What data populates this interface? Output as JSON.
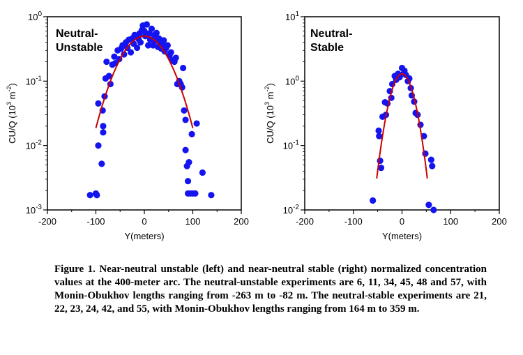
{
  "chart_data": [
    {
      "type": "scatter",
      "panel_label_lines": [
        "Neutral-",
        "Unstable"
      ],
      "xlabel": "Y(meters)",
      "ylabel_main": "CU/Q (10",
      "ylabel_sup": "3",
      "ylabel_unit": " m",
      "ylabel_unit_sup": "-2",
      "ylabel_close": ")",
      "xlim": [
        -200,
        200
      ],
      "ylim": [
        0.001,
        1
      ],
      "yscale": "log",
      "xticks": [
        "-200",
        "-100",
        "0",
        "100",
        "200"
      ],
      "yticks": [
        {
          "value": 1,
          "base": "10",
          "exp": "0"
        },
        {
          "value": 0.1,
          "base": "10",
          "exp": "-1"
        },
        {
          "value": 0.01,
          "base": "10",
          "exp": "-2"
        },
        {
          "value": 0.001,
          "base": "10",
          "exp": "-3"
        }
      ],
      "point_color": "#1414f0",
      "fit_color": "#cc0000",
      "points": [
        [
          -112,
          0.0017
        ],
        [
          -100,
          0.0018
        ],
        [
          -98,
          0.0017
        ],
        [
          -95,
          0.01
        ],
        [
          -95,
          0.045
        ],
        [
          -88,
          0.0052
        ],
        [
          -86,
          0.035
        ],
        [
          -85,
          0.02
        ],
        [
          -85,
          0.016
        ],
        [
          -82,
          0.058
        ],
        [
          -80,
          0.11
        ],
        [
          -78,
          0.2
        ],
        [
          -73,
          0.12
        ],
        [
          -70,
          0.09
        ],
        [
          -66,
          0.18
        ],
        [
          -62,
          0.24
        ],
        [
          -60,
          0.19
        ],
        [
          -55,
          0.3
        ],
        [
          -52,
          0.22
        ],
        [
          -48,
          0.32
        ],
        [
          -45,
          0.36
        ],
        [
          -42,
          0.26
        ],
        [
          -38,
          0.4
        ],
        [
          -35,
          0.33
        ],
        [
          -32,
          0.44
        ],
        [
          -28,
          0.28
        ],
        [
          -25,
          0.46
        ],
        [
          -22,
          0.38
        ],
        [
          -20,
          0.52
        ],
        [
          -15,
          0.33
        ],
        [
          -12,
          0.45
        ],
        [
          -10,
          0.55
        ],
        [
          -8,
          0.4
        ],
        [
          -5,
          0.62
        ],
        [
          -3,
          0.73
        ],
        [
          0,
          0.6
        ],
        [
          2,
          0.5
        ],
        [
          5,
          0.76
        ],
        [
          8,
          0.36
        ],
        [
          10,
          0.55
        ],
        [
          12,
          0.44
        ],
        [
          15,
          0.65
        ],
        [
          18,
          0.36
        ],
        [
          20,
          0.52
        ],
        [
          22,
          0.42
        ],
        [
          25,
          0.56
        ],
        [
          28,
          0.34
        ],
        [
          30,
          0.46
        ],
        [
          32,
          0.4
        ],
        [
          35,
          0.32
        ],
        [
          38,
          0.36
        ],
        [
          40,
          0.43
        ],
        [
          42,
          0.29
        ],
        [
          45,
          0.33
        ],
        [
          48,
          0.36
        ],
        [
          52,
          0.25
        ],
        [
          55,
          0.28
        ],
        [
          58,
          0.21
        ],
        [
          62,
          0.2
        ],
        [
          65,
          0.23
        ],
        [
          68,
          0.09
        ],
        [
          72,
          0.1
        ],
        [
          75,
          0.09
        ],
        [
          78,
          0.08
        ],
        [
          80,
          0.16
        ],
        [
          82,
          0.035
        ],
        [
          85,
          0.025
        ],
        [
          85,
          0.0085
        ],
        [
          88,
          0.0048
        ],
        [
          90,
          0.0028
        ],
        [
          90,
          0.0018
        ],
        [
          92,
          0.0055
        ],
        [
          95,
          0.0018
        ],
        [
          98,
          0.015
        ],
        [
          100,
          0.0018
        ],
        [
          105,
          0.0018
        ],
        [
          108,
          0.022
        ],
        [
          120,
          0.0038
        ],
        [
          138,
          0.0017
        ]
      ],
      "fit_sigma": 39,
      "fit_peak": 0.5,
      "fit_range": [
        -100,
        100
      ]
    },
    {
      "type": "scatter",
      "panel_label_lines": [
        "Neutral-",
        "Stable"
      ],
      "xlabel": "Y(meters)",
      "ylabel_main": "CU/Q (10",
      "ylabel_sup": "3",
      "ylabel_unit": " m",
      "ylabel_unit_sup": "-2",
      "ylabel_close": ")",
      "xlim": [
        -200,
        200
      ],
      "ylim": [
        0.01,
        10
      ],
      "yscale": "log",
      "xticks": [
        "-200",
        "-100",
        "0",
        "100",
        "200"
      ],
      "yticks": [
        {
          "value": 10,
          "base": "10",
          "exp": "1"
        },
        {
          "value": 1,
          "base": "10",
          "exp": "0"
        },
        {
          "value": 0.1,
          "base": "10",
          "exp": "-1"
        },
        {
          "value": 0.01,
          "base": "10",
          "exp": "-2"
        }
      ],
      "point_color": "#1414f0",
      "fit_color": "#cc0000",
      "points": [
        [
          -60,
          0.014
        ],
        [
          -48,
          0.17
        ],
        [
          -47,
          0.14
        ],
        [
          -45,
          0.058
        ],
        [
          -43,
          0.045
        ],
        [
          -40,
          0.28
        ],
        [
          -35,
          0.47
        ],
        [
          -33,
          0.3
        ],
        [
          -30,
          0.45
        ],
        [
          -25,
          0.7
        ],
        [
          -22,
          0.55
        ],
        [
          -20,
          0.9
        ],
        [
          -15,
          1.2
        ],
        [
          -12,
          1.05
        ],
        [
          -8,
          1.3
        ],
        [
          -5,
          1.15
        ],
        [
          0,
          1.6
        ],
        [
          3,
          1.3
        ],
        [
          5,
          1.45
        ],
        [
          8,
          1.25
        ],
        [
          12,
          1.0
        ],
        [
          15,
          1.1
        ],
        [
          18,
          0.78
        ],
        [
          20,
          0.6
        ],
        [
          25,
          0.48
        ],
        [
          28,
          0.32
        ],
        [
          32,
          0.3
        ],
        [
          38,
          0.21
        ],
        [
          45,
          0.14
        ],
        [
          48,
          0.075
        ],
        [
          55,
          0.012
        ],
        [
          60,
          0.06
        ],
        [
          62,
          0.048
        ],
        [
          65,
          0.01
        ]
      ],
      "fit_sigma": 19,
      "fit_peak": 1.3,
      "fit_range": [
        -52,
        52
      ]
    }
  ],
  "caption": "Figure 1.  Near-neutral unstable (left) and near-neutral stable (right) normalized concentration values at the 400-meter arc.  The neutral-unstable experiments are 6, 11, 34, 45, 48 and 57, with Monin-Obukhov lengths ranging from -263 m to -82 m.  The neutral-stable experiments are 21, 22, 23, 24, 42, and 55, with Monin-Obukhov lengths ranging from 164 m to 359 m."
}
